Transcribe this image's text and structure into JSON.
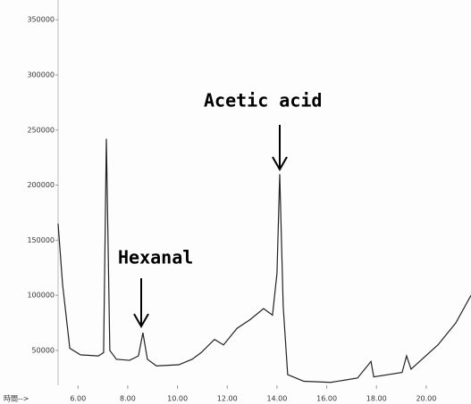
{
  "chart_data": {
    "type": "line",
    "x_label": "時間-->",
    "annotations": [
      "Acetic acid",
      "Hexanal"
    ],
    "x": [
      5.2,
      5.38,
      5.67,
      6.1,
      6.82,
      7.03,
      7.14,
      7.28,
      7.54,
      8.07,
      8.43,
      8.61,
      8.79,
      9.15,
      10.05,
      10.59,
      10.95,
      11.49,
      11.85,
      12.39,
      12.92,
      13.46,
      13.82,
      14.0,
      14.11,
      14.25,
      14.43,
      15.08,
      16.16,
      17.24,
      17.78,
      17.89,
      19.03,
      19.21,
      19.39,
      20.47,
      21.19,
      21.8
    ],
    "series": [
      {
        "color": "#222222",
        "values": [
          165000,
          110000,
          52000,
          46000,
          45000,
          48000,
          242000,
          50000,
          42000,
          41000,
          45000,
          66000,
          42000,
          36000,
          37000,
          42000,
          48000,
          60000,
          55000,
          70000,
          78000,
          88000,
          82000,
          120000,
          210000,
          90000,
          28000,
          22000,
          21000,
          25000,
          40000,
          26000,
          30000,
          45000,
          33000,
          55000,
          75000,
          100000
        ]
      }
    ],
    "xlim": [
      5.2,
      21.8
    ],
    "ylim": [
      20000,
      368000
    ],
    "xticks": [
      {
        "value": 6,
        "label": "6.00"
      },
      {
        "value": 8,
        "label": "8.00"
      },
      {
        "value": 10,
        "label": "10.00"
      },
      {
        "value": 12,
        "label": "12.00"
      },
      {
        "value": 14,
        "label": "14.00"
      },
      {
        "value": 16,
        "label": "16.00"
      },
      {
        "value": 18,
        "label": "18.00"
      },
      {
        "value": 20,
        "label": "20.00"
      }
    ],
    "yticks": [
      50000,
      100000,
      150000,
      200000,
      250000,
      300000,
      350000
    ]
  }
}
